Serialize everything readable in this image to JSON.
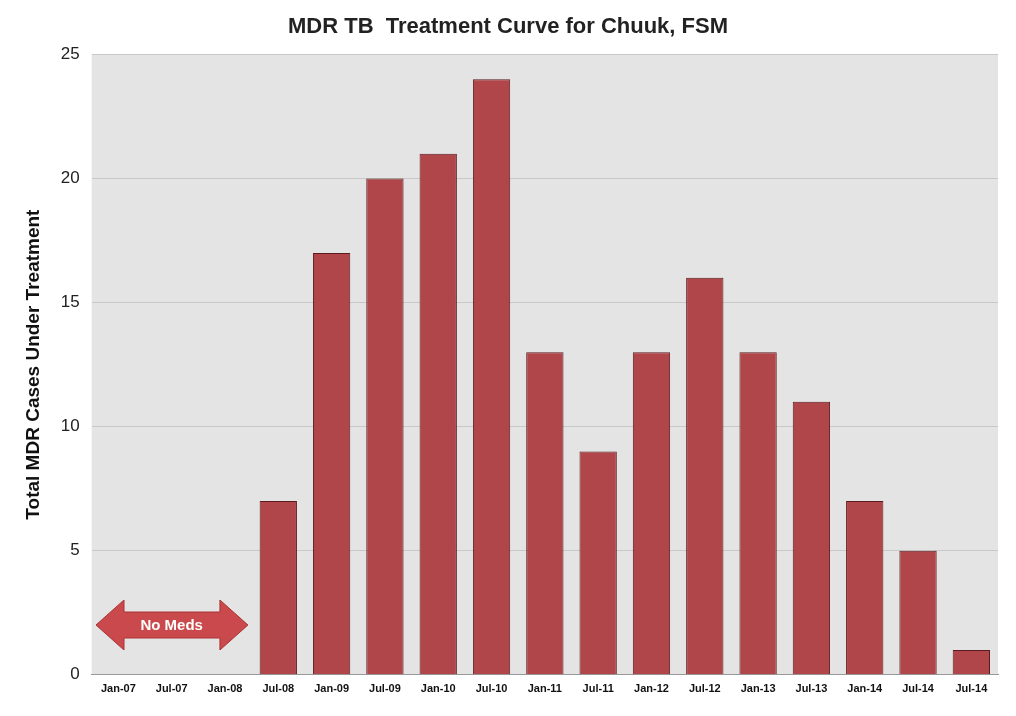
{
  "chart_data": {
    "type": "bar",
    "title": "MDR TB  Treatment Curve for Chuuk, FSM",
    "ylabel": "Total MDR Cases Under Treatment",
    "categories": [
      "Jan-07",
      "Jul-07",
      "Jan-08",
      "Jul-08",
      "Jan-09",
      "Jul-09",
      "Jan-10",
      "Jul-10",
      "Jan-11",
      "Jul-11",
      "Jan-12",
      "Jul-12",
      "Jan-13",
      "Jul-13",
      "Jan-14",
      "Jul-14",
      "Jul-14"
    ],
    "values": [
      0,
      0,
      0,
      7,
      17,
      20,
      21,
      24,
      13,
      9,
      13,
      16,
      13,
      11,
      7,
      5,
      1
    ],
    "color": "#b0454a",
    "ylim": [
      0,
      25
    ],
    "yticks": [
      0,
      5,
      10,
      15,
      20,
      25
    ],
    "grid": "y",
    "annotations": [
      "No Meds"
    ]
  }
}
